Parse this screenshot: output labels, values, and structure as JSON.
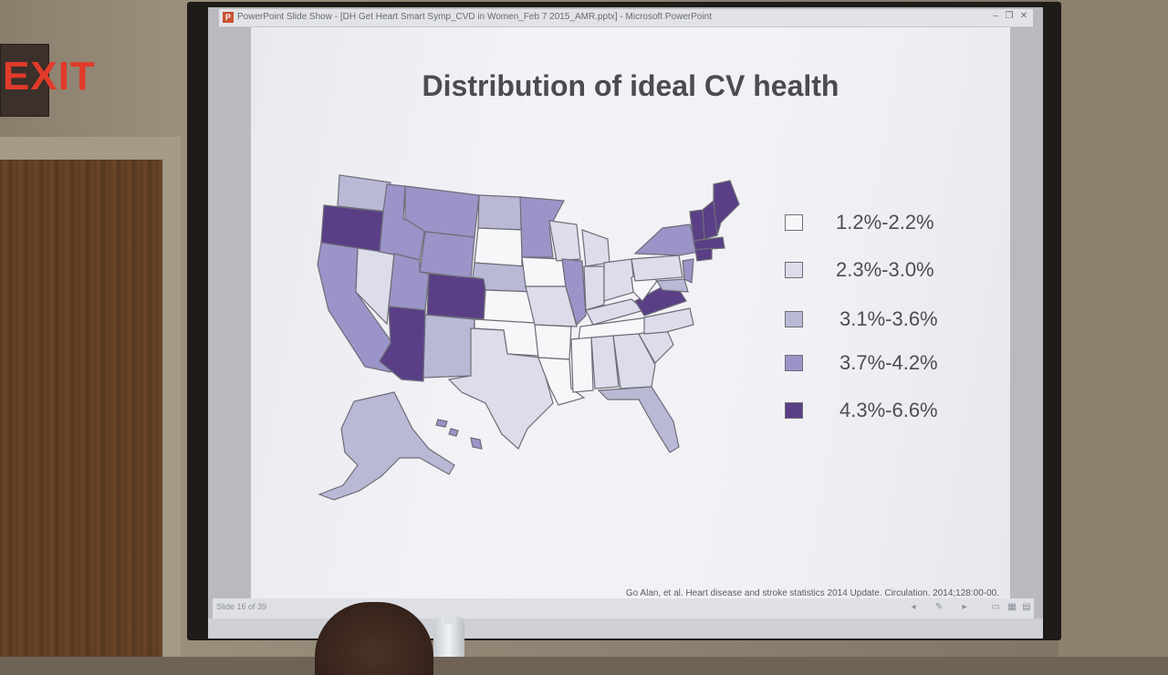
{
  "window": {
    "title": "PowerPoint Slide Show - [DH Get Heart Smart Symp_CVD in Women_Feb 7 2015_AMR.pptx] - Microsoft PowerPoint",
    "icon_name": "powerpoint-icon",
    "icon_letter": "P"
  },
  "environment": {
    "exit_sign": "EXIT"
  },
  "slide": {
    "title": "Distribution of ideal CV health",
    "legend": [
      {
        "label": "1.2%-2.2%",
        "color": "#f7f7fa"
      },
      {
        "label": "2.3%-3.0%",
        "color": "#dcdcea"
      },
      {
        "label": "3.1%-3.6%",
        "color": "#b9b9d6"
      },
      {
        "label": "3.7%-4.2%",
        "color": "#9b94c8"
      },
      {
        "label": "4.3%-6.6%",
        "color": "#5a3f86"
      }
    ],
    "citation": "Go Alan, et al. Heart disease and stroke statistics 2014 Update. Circulation. 2014;128:00-00."
  },
  "statusbar": {
    "slide_number": "Slide 16 of 39"
  }
}
